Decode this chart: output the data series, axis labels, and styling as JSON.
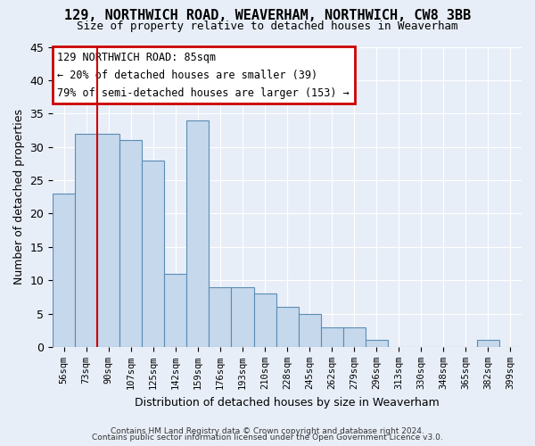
{
  "title": "129, NORTHWICH ROAD, WEAVERHAM, NORTHWICH, CW8 3BB",
  "subtitle": "Size of property relative to detached houses in Weaverham",
  "xlabel": "Distribution of detached houses by size in Weaverham",
  "ylabel": "Number of detached properties",
  "bar_labels": [
    "56sqm",
    "73sqm",
    "90sqm",
    "107sqm",
    "125sqm",
    "142sqm",
    "159sqm",
    "176sqm",
    "193sqm",
    "210sqm",
    "228sqm",
    "245sqm",
    "262sqm",
    "279sqm",
    "296sqm",
    "313sqm",
    "330sqm",
    "348sqm",
    "365sqm",
    "382sqm",
    "399sqm"
  ],
  "bar_values": [
    23,
    32,
    32,
    31,
    28,
    11,
    34,
    9,
    9,
    8,
    6,
    5,
    3,
    3,
    1,
    0,
    0,
    0,
    0,
    1,
    0
  ],
  "bar_color": "#c5d8ec",
  "bar_edge_color": "#5a8db5",
  "vline_x": 1.5,
  "vline_color": "#cc0000",
  "annotation_title": "129 NORTHWICH ROAD: 85sqm",
  "annotation_line1": "← 20% of detached houses are smaller (39)",
  "annotation_line2": "79% of semi-detached houses are larger (153) →",
  "ylim": [
    0,
    45
  ],
  "yticks": [
    0,
    5,
    10,
    15,
    20,
    25,
    30,
    35,
    40,
    45
  ],
  "footer1": "Contains HM Land Registry data © Crown copyright and database right 2024.",
  "footer2": "Contains public sector information licensed under the Open Government Licence v3.0.",
  "bg_color": "#e8eef8",
  "plot_bg_color": "#e8eef8",
  "grid_color": "#ffffff",
  "title_fontsize": 11,
  "subtitle_fontsize": 9
}
